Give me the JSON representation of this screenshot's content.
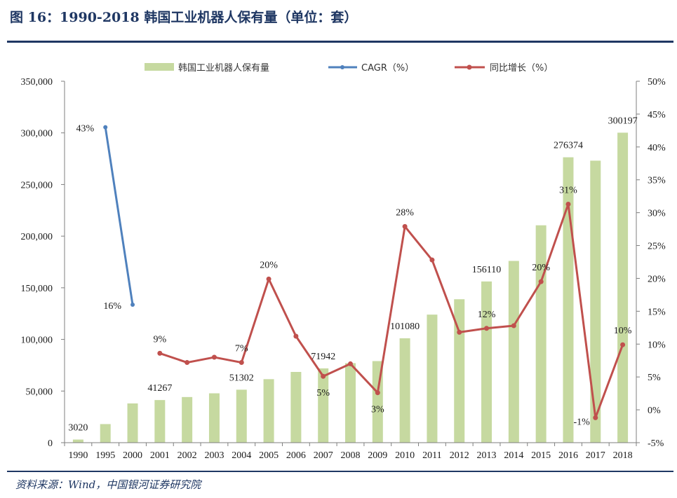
{
  "header": {
    "title": "图 16：1990-2018 韩国工业机器人保有量（单位：套）"
  },
  "footer": {
    "source": "资料来源：Wind，中国银河证券研究院"
  },
  "colors": {
    "bar": "#c6d9a0",
    "cagr": "#4f81bd",
    "yoy": "#c0504d",
    "bar_label": "#1f3763",
    "yoy_label": "#c0504d",
    "cagr_label": "#1f3763"
  },
  "chart_data": {
    "type": "bar",
    "title": "1990-2018 韩国工业机器人保有量（单位：套）",
    "categories": [
      "1990",
      "1995",
      "2000",
      "2001",
      "2002",
      "2003",
      "2004",
      "2005",
      "2006",
      "2007",
      "2008",
      "2009",
      "2010",
      "2011",
      "2012",
      "2013",
      "2014",
      "2015",
      "2016",
      "2017",
      "2018"
    ],
    "y_left": {
      "min": 0,
      "max": 350000,
      "ticks": [
        0,
        50000,
        100000,
        150000,
        200000,
        250000,
        300000,
        350000
      ],
      "tick_labels": [
        "0",
        "50,000",
        "100,000",
        "150,000",
        "200,000",
        "250,000",
        "300,000",
        "350,000"
      ]
    },
    "y_right": {
      "min": -5,
      "max": 50,
      "ticks": [
        -5,
        0,
        5,
        10,
        15,
        20,
        25,
        30,
        35,
        40,
        45,
        50
      ],
      "tick_labels": [
        "-5%",
        "0%",
        "5%",
        "10%",
        "15%",
        "20%",
        "25%",
        "30%",
        "35%",
        "40%",
        "45%",
        "50%"
      ]
    },
    "series": [
      {
        "name": "韩国工业机器人保有量",
        "type": "bar",
        "axis": "left",
        "values": [
          3020,
          18000,
          38000,
          41267,
          44200,
          47800,
          51302,
          61500,
          68500,
          71942,
          77000,
          79000,
          101080,
          124000,
          138900,
          156110,
          176000,
          210500,
          276374,
          273100,
          300197
        ]
      },
      {
        "name": "CAGR（%）",
        "type": "line",
        "axis": "right",
        "values": [
          null,
          43,
          16,
          null,
          null,
          null,
          null,
          null,
          null,
          null,
          null,
          null,
          null,
          null,
          null,
          null,
          null,
          null,
          null,
          null,
          null
        ]
      },
      {
        "name": "同比增长（%）",
        "type": "line",
        "axis": "right",
        "values": [
          null,
          null,
          null,
          8.6,
          7.2,
          8.0,
          7.2,
          19.9,
          11.2,
          5.1,
          7.0,
          2.6,
          27.9,
          22.8,
          11.8,
          12.4,
          12.8,
          19.5,
          31.3,
          -1.2,
          9.9
        ]
      }
    ],
    "bar_labels": [
      {
        "index": 0,
        "text": "3020"
      },
      {
        "index": 3,
        "text": "41267"
      },
      {
        "index": 6,
        "text": "51302"
      },
      {
        "index": 9,
        "text": "71942"
      },
      {
        "index": 12,
        "text": "101080"
      },
      {
        "index": 15,
        "text": "156110"
      },
      {
        "index": 18,
        "text": "276374"
      },
      {
        "index": 20,
        "text": "300197"
      }
    ],
    "cagr_labels": [
      {
        "index": 1,
        "text": "43%",
        "side": "left"
      },
      {
        "index": 2,
        "text": "16%",
        "side": "left"
      }
    ],
    "yoy_labels": [
      {
        "index": 3,
        "text": "9%",
        "side": "above"
      },
      {
        "index": 6,
        "text": "7%",
        "side": "above"
      },
      {
        "index": 7,
        "text": "20%",
        "side": "above"
      },
      {
        "index": 9,
        "text": "5%",
        "side": "below"
      },
      {
        "index": 11,
        "text": "3%",
        "side": "below"
      },
      {
        "index": 12,
        "text": "28%",
        "side": "above"
      },
      {
        "index": 15,
        "text": "12%",
        "side": "above"
      },
      {
        "index": 17,
        "text": "20%",
        "side": "above"
      },
      {
        "index": 18,
        "text": "31%",
        "side": "above"
      },
      {
        "index": 19,
        "text": "-1%",
        "side": "left"
      },
      {
        "index": 20,
        "text": "10%",
        "side": "above"
      }
    ],
    "legend": [
      "韩国工业机器人保有量",
      "CAGR（%）",
      "同比增长（%）"
    ]
  }
}
